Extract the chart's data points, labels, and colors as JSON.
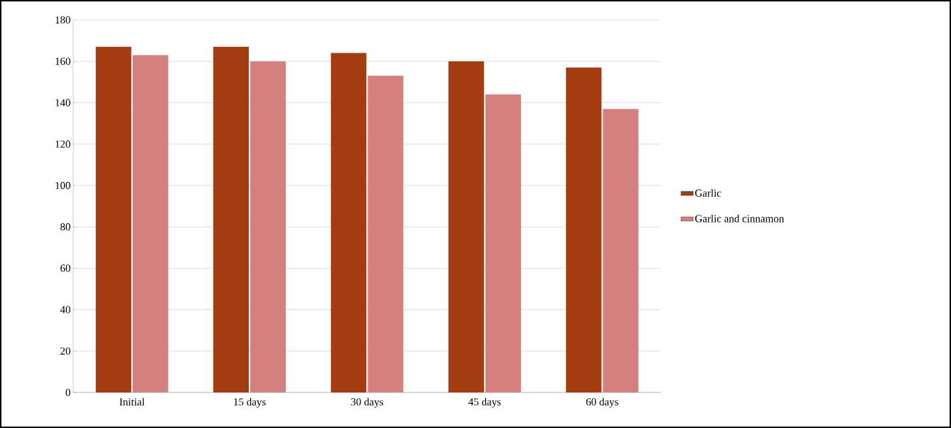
{
  "chart_data": {
    "type": "bar",
    "categories": [
      "Initial",
      "15 days",
      "30 days",
      "45 days",
      "60 days"
    ],
    "series": [
      {
        "name": "Garlic",
        "color": "#a33c10",
        "values": [
          167,
          167,
          164,
          160,
          157
        ]
      },
      {
        "name": "Garlic and cinnamon",
        "color": "#d4807e",
        "values": [
          163,
          160,
          153,
          144,
          137
        ]
      }
    ],
    "ylim": [
      0,
      180
    ],
    "yticks": [
      0,
      20,
      40,
      60,
      80,
      100,
      120,
      140,
      160,
      180
    ],
    "grid": "y",
    "legend": "right"
  }
}
